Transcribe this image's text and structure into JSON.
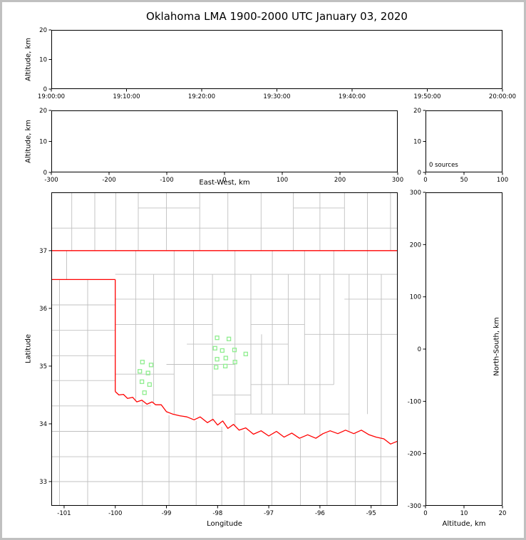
{
  "title": "Oklahoma LMA 1900-2000 UTC January 03, 2020",
  "colors": {
    "state_boundary": "#ff0000",
    "county_lines": "#c0c0c0",
    "stations": "#90ee90",
    "axes": "#000000",
    "frame": "#c0c0c0"
  },
  "chart_data": [
    {
      "id": "time-height",
      "type": "scatter",
      "xlabel": "",
      "ylabel": "Altitude, km",
      "xlim": [
        0,
        3600
      ],
      "ylim": [
        0,
        20
      ],
      "xticks": [
        0,
        600,
        1200,
        1800,
        2400,
        3000,
        3600
      ],
      "xtick_labels": [
        "19:00:00",
        "19:10:00",
        "19:20:00",
        "19:30:00",
        "19:40:00",
        "19:50:00",
        "20:00:00"
      ],
      "yticks": [
        0,
        10,
        20
      ],
      "ytick_labels": [
        "0",
        "10",
        "20"
      ],
      "points": []
    },
    {
      "id": "east-west-height",
      "type": "scatter",
      "xlabel": "East-West, km",
      "ylabel": "Altitude, km",
      "xlim": [
        -300,
        300
      ],
      "ylim": [
        0,
        20
      ],
      "xticks": [
        -300,
        -200,
        -100,
        0,
        100,
        200,
        300
      ],
      "xtick_labels": [
        "-300",
        "-200",
        "-100",
        "0",
        "100",
        "200",
        "300"
      ],
      "yticks": [
        0,
        10,
        20
      ],
      "ytick_labels": [
        "0",
        "10",
        "20"
      ],
      "points": []
    },
    {
      "id": "altitude-histogram",
      "type": "line",
      "annotation": "0 sources",
      "xlim": [
        0,
        100
      ],
      "ylim": [
        0,
        20
      ],
      "xticks": [
        0,
        50,
        100
      ],
      "xtick_labels": [
        "0",
        "50",
        "100"
      ],
      "yticks": [
        0,
        10,
        20
      ],
      "ytick_labels": [
        "0",
        "10",
        "20"
      ],
      "points": []
    },
    {
      "id": "plan-view-map",
      "type": "scatter",
      "xlabel": "Longitude",
      "ylabel": "Latitude",
      "xlim": [
        -101.25,
        -94.48
      ],
      "ylim": [
        32.58,
        38.01
      ],
      "xticks": [
        -101,
        -100,
        -99,
        -98,
        -97,
        -96,
        -95
      ],
      "xtick_labels": [
        "-101",
        "-100",
        "-99",
        "-98",
        "-97",
        "-96",
        "-95"
      ],
      "yticks": [
        33,
        34,
        35,
        36,
        37
      ],
      "ytick_labels": [
        "33",
        "34",
        "35",
        "36",
        "37"
      ],
      "stations": [
        [
          -98.01,
          35.49
        ],
        [
          -97.78,
          35.47
        ],
        [
          -98.05,
          35.31
        ],
        [
          -97.91,
          35.27
        ],
        [
          -97.67,
          35.28
        ],
        [
          -98.01,
          35.12
        ],
        [
          -97.84,
          35.14
        ],
        [
          -98.03,
          34.98
        ],
        [
          -97.85,
          35.0
        ],
        [
          -97.45,
          35.21
        ],
        [
          -97.66,
          35.07
        ],
        [
          -99.47,
          35.07
        ],
        [
          -99.3,
          35.02
        ],
        [
          -99.52,
          34.91
        ],
        [
          -99.36,
          34.88
        ],
        [
          -99.48,
          34.73
        ],
        [
          -99.33,
          34.68
        ],
        [
          -99.43,
          34.54
        ]
      ],
      "state_boundary": [
        [
          [
            -101.25,
            37
          ],
          [
            -94.48,
            37
          ]
        ],
        [
          [
            -101.25,
            36.5
          ],
          [
            -100,
            36.5
          ]
        ],
        [
          [
            -100,
            36.5
          ],
          [
            -100,
            34.56
          ]
        ],
        [
          [
            -100.0,
            34.56
          ],
          [
            -99.93,
            34.5
          ],
          [
            -99.84,
            34.51
          ],
          [
            -99.76,
            34.44
          ],
          [
            -99.66,
            34.46
          ],
          [
            -99.58,
            34.38
          ],
          [
            -99.48,
            34.41
          ],
          [
            -99.38,
            34.34
          ],
          [
            -99.28,
            34.38
          ],
          [
            -99.21,
            34.33
          ],
          [
            -99.1,
            34.33
          ],
          [
            -99.0,
            34.21
          ],
          [
            -98.88,
            34.17
          ],
          [
            -98.74,
            34.14
          ],
          [
            -98.6,
            34.12
          ],
          [
            -98.46,
            34.07
          ],
          [
            -98.34,
            34.12
          ],
          [
            -98.2,
            34.02
          ],
          [
            -98.09,
            34.08
          ],
          [
            -98.0,
            33.98
          ],
          [
            -97.9,
            34.05
          ],
          [
            -97.8,
            33.92
          ],
          [
            -97.69,
            33.99
          ],
          [
            -97.58,
            33.89
          ],
          [
            -97.45,
            33.93
          ],
          [
            -97.3,
            33.82
          ],
          [
            -97.15,
            33.88
          ],
          [
            -97.0,
            33.79
          ],
          [
            -96.85,
            33.87
          ],
          [
            -96.7,
            33.77
          ],
          [
            -96.55,
            33.84
          ],
          [
            -96.4,
            33.75
          ],
          [
            -96.24,
            33.81
          ],
          [
            -96.08,
            33.75
          ],
          [
            -95.94,
            33.83
          ],
          [
            -95.8,
            33.88
          ],
          [
            -95.65,
            33.83
          ],
          [
            -95.5,
            33.89
          ],
          [
            -95.34,
            33.83
          ],
          [
            -95.19,
            33.89
          ],
          [
            -95.04,
            33.81
          ],
          [
            -94.9,
            33.77
          ],
          [
            -94.75,
            33.74
          ],
          [
            -94.62,
            33.65
          ],
          [
            -94.48,
            33.7
          ]
        ]
      ],
      "county_lines": [
        [
          [
            -100.85,
            37
          ],
          [
            -100.85,
            38.01
          ]
        ],
        [
          [
            -100.4,
            37
          ],
          [
            -100.4,
            38.01
          ]
        ],
        [
          [
            -99.99,
            37
          ],
          [
            -99.99,
            38.01
          ]
        ],
        [
          [
            -99.55,
            37
          ],
          [
            -99.55,
            38.01
          ]
        ],
        [
          [
            -99.0,
            37
          ],
          [
            -99.0,
            38.01
          ]
        ],
        [
          [
            -98.35,
            37
          ],
          [
            -98.35,
            38.01
          ]
        ],
        [
          [
            -97.8,
            37
          ],
          [
            -97.8,
            38.01
          ]
        ],
        [
          [
            -97.15,
            37
          ],
          [
            -97.15,
            38.01
          ]
        ],
        [
          [
            -96.52,
            37
          ],
          [
            -96.52,
            38.01
          ]
        ],
        [
          [
            -96.0,
            37
          ],
          [
            -96.0,
            38.01
          ]
        ],
        [
          [
            -95.52,
            37
          ],
          [
            -95.52,
            38.01
          ]
        ],
        [
          [
            -95.07,
            37
          ],
          [
            -95.07,
            38.01
          ]
        ],
        [
          [
            -94.62,
            37
          ],
          [
            -94.62,
            38.01
          ]
        ],
        [
          [
            -101.25,
            37.39
          ],
          [
            -94.48,
            37.39
          ]
        ],
        [
          [
            -99.55,
            37.74
          ],
          [
            -98.35,
            37.74
          ]
        ],
        [
          [
            -96.52,
            37.74
          ],
          [
            -95.52,
            37.74
          ]
        ],
        [
          [
            -100.95,
            36.5
          ],
          [
            -100.95,
            37
          ]
        ],
        [
          [
            -101.09,
            36.5
          ],
          [
            -101.09,
            32.58
          ]
        ],
        [
          [
            -100.54,
            36.5
          ],
          [
            -100.54,
            32.58
          ]
        ],
        [
          [
            -101.25,
            36.06
          ],
          [
            -100,
            36.06
          ]
        ],
        [
          [
            -101.25,
            35.62
          ],
          [
            -100,
            35.62
          ]
        ],
        [
          [
            -101.25,
            35.18
          ],
          [
            -100,
            35.18
          ]
        ],
        [
          [
            -101.25,
            34.75
          ],
          [
            -100,
            34.75
          ]
        ],
        [
          [
            -101.25,
            34.31
          ],
          [
            -99.3,
            34.31
          ]
        ],
        [
          [
            -101.25,
            33.87
          ],
          [
            -97.9,
            33.87
          ]
        ],
        [
          [
            -101.25,
            33.43
          ],
          [
            -94.48,
            33.43
          ]
        ],
        [
          [
            -101.25,
            33.0
          ],
          [
            -94.48,
            33.0
          ]
        ],
        [
          [
            -99.47,
            34.4
          ],
          [
            -99.47,
            32.58
          ]
        ],
        [
          [
            -98.95,
            34.15
          ],
          [
            -98.95,
            32.58
          ]
        ],
        [
          [
            -98.42,
            34.05
          ],
          [
            -98.42,
            32.58
          ]
        ],
        [
          [
            -97.92,
            33.95
          ],
          [
            -97.92,
            32.58
          ]
        ],
        [
          [
            -97.48,
            33.88
          ],
          [
            -97.48,
            32.58
          ]
        ],
        [
          [
            -96.94,
            33.78
          ],
          [
            -96.94,
            32.58
          ]
        ],
        [
          [
            -96.38,
            33.74
          ],
          [
            -96.38,
            32.58
          ]
        ],
        [
          [
            -95.86,
            33.84
          ],
          [
            -95.86,
            32.58
          ]
        ],
        [
          [
            -95.31,
            33.85
          ],
          [
            -95.31,
            32.58
          ]
        ],
        [
          [
            -94.81,
            33.74
          ],
          [
            -94.81,
            32.58
          ]
        ],
        [
          [
            -100,
            36.59
          ],
          [
            -94.48,
            36.59
          ]
        ],
        [
          [
            -100,
            36.16
          ],
          [
            -96.0,
            36.16
          ]
        ],
        [
          [
            -95.52,
            36.16
          ],
          [
            -94.48,
            36.16
          ]
        ],
        [
          [
            -100,
            35.72
          ],
          [
            -98.1,
            35.72
          ]
        ],
        [
          [
            -97.35,
            35.72
          ],
          [
            -96.3,
            35.72
          ]
        ],
        [
          [
            -96.3,
            35.55
          ],
          [
            -94.48,
            35.55
          ]
        ],
        [
          [
            -98.6,
            35.38
          ],
          [
            -96.62,
            35.38
          ]
        ],
        [
          [
            -99.0,
            35.03
          ],
          [
            -97.66,
            35.03
          ]
        ],
        [
          [
            -100,
            34.86
          ],
          [
            -98.85,
            34.86
          ]
        ],
        [
          [
            -97.35,
            34.68
          ],
          [
            -95.73,
            34.68
          ]
        ],
        [
          [
            -98.1,
            34.5
          ],
          [
            -97.35,
            34.5
          ]
        ],
        [
          [
            -97.66,
            34.17
          ],
          [
            -95.43,
            34.17
          ]
        ],
        [
          [
            -99.6,
            37
          ],
          [
            -99.6,
            34.42
          ]
        ],
        [
          [
            -99.25,
            36.59
          ],
          [
            -99.25,
            34.36
          ]
        ],
        [
          [
            -98.85,
            37
          ],
          [
            -98.85,
            34.17
          ]
        ],
        [
          [
            -98.47,
            37
          ],
          [
            -98.47,
            34.1
          ]
        ],
        [
          [
            -98.1,
            36.59
          ],
          [
            -98.1,
            34.04
          ]
        ],
        [
          [
            -97.66,
            37
          ],
          [
            -97.66,
            33.95
          ]
        ],
        [
          [
            -97.35,
            36.59
          ],
          [
            -97.35,
            34.17
          ]
        ],
        [
          [
            -97.14,
            35.55
          ],
          [
            -97.14,
            34.17
          ]
        ],
        [
          [
            -96.93,
            37
          ],
          [
            -96.93,
            34.17
          ]
        ],
        [
          [
            -96.62,
            36.59
          ],
          [
            -96.62,
            34.68
          ]
        ],
        [
          [
            -96.3,
            37
          ],
          [
            -96.3,
            34.17
          ]
        ],
        [
          [
            -96.0,
            36.59
          ],
          [
            -96.0,
            33.8
          ]
        ],
        [
          [
            -95.73,
            37
          ],
          [
            -95.73,
            34.68
          ]
        ],
        [
          [
            -95.43,
            36.59
          ],
          [
            -95.43,
            33.88
          ]
        ],
        [
          [
            -95.07,
            37
          ],
          [
            -95.07,
            34.17
          ]
        ],
        [
          [
            -94.8,
            36.59
          ],
          [
            -94.8,
            33.75
          ]
        ]
      ]
    },
    {
      "id": "north-south-height",
      "type": "scatter",
      "xlabel": "Altitude, km",
      "ylabel": "North-South, km",
      "xlim": [
        0,
        20
      ],
      "ylim": [
        -300,
        300
      ],
      "xticks": [
        0,
        10,
        20
      ],
      "xtick_labels": [
        "0",
        "10",
        "20"
      ],
      "yticks": [
        -300,
        -200,
        -100,
        0,
        100,
        200,
        300
      ],
      "ytick_labels": [
        "-300",
        "-200",
        "-100",
        "0",
        "100",
        "200",
        "300"
      ],
      "points": []
    }
  ]
}
